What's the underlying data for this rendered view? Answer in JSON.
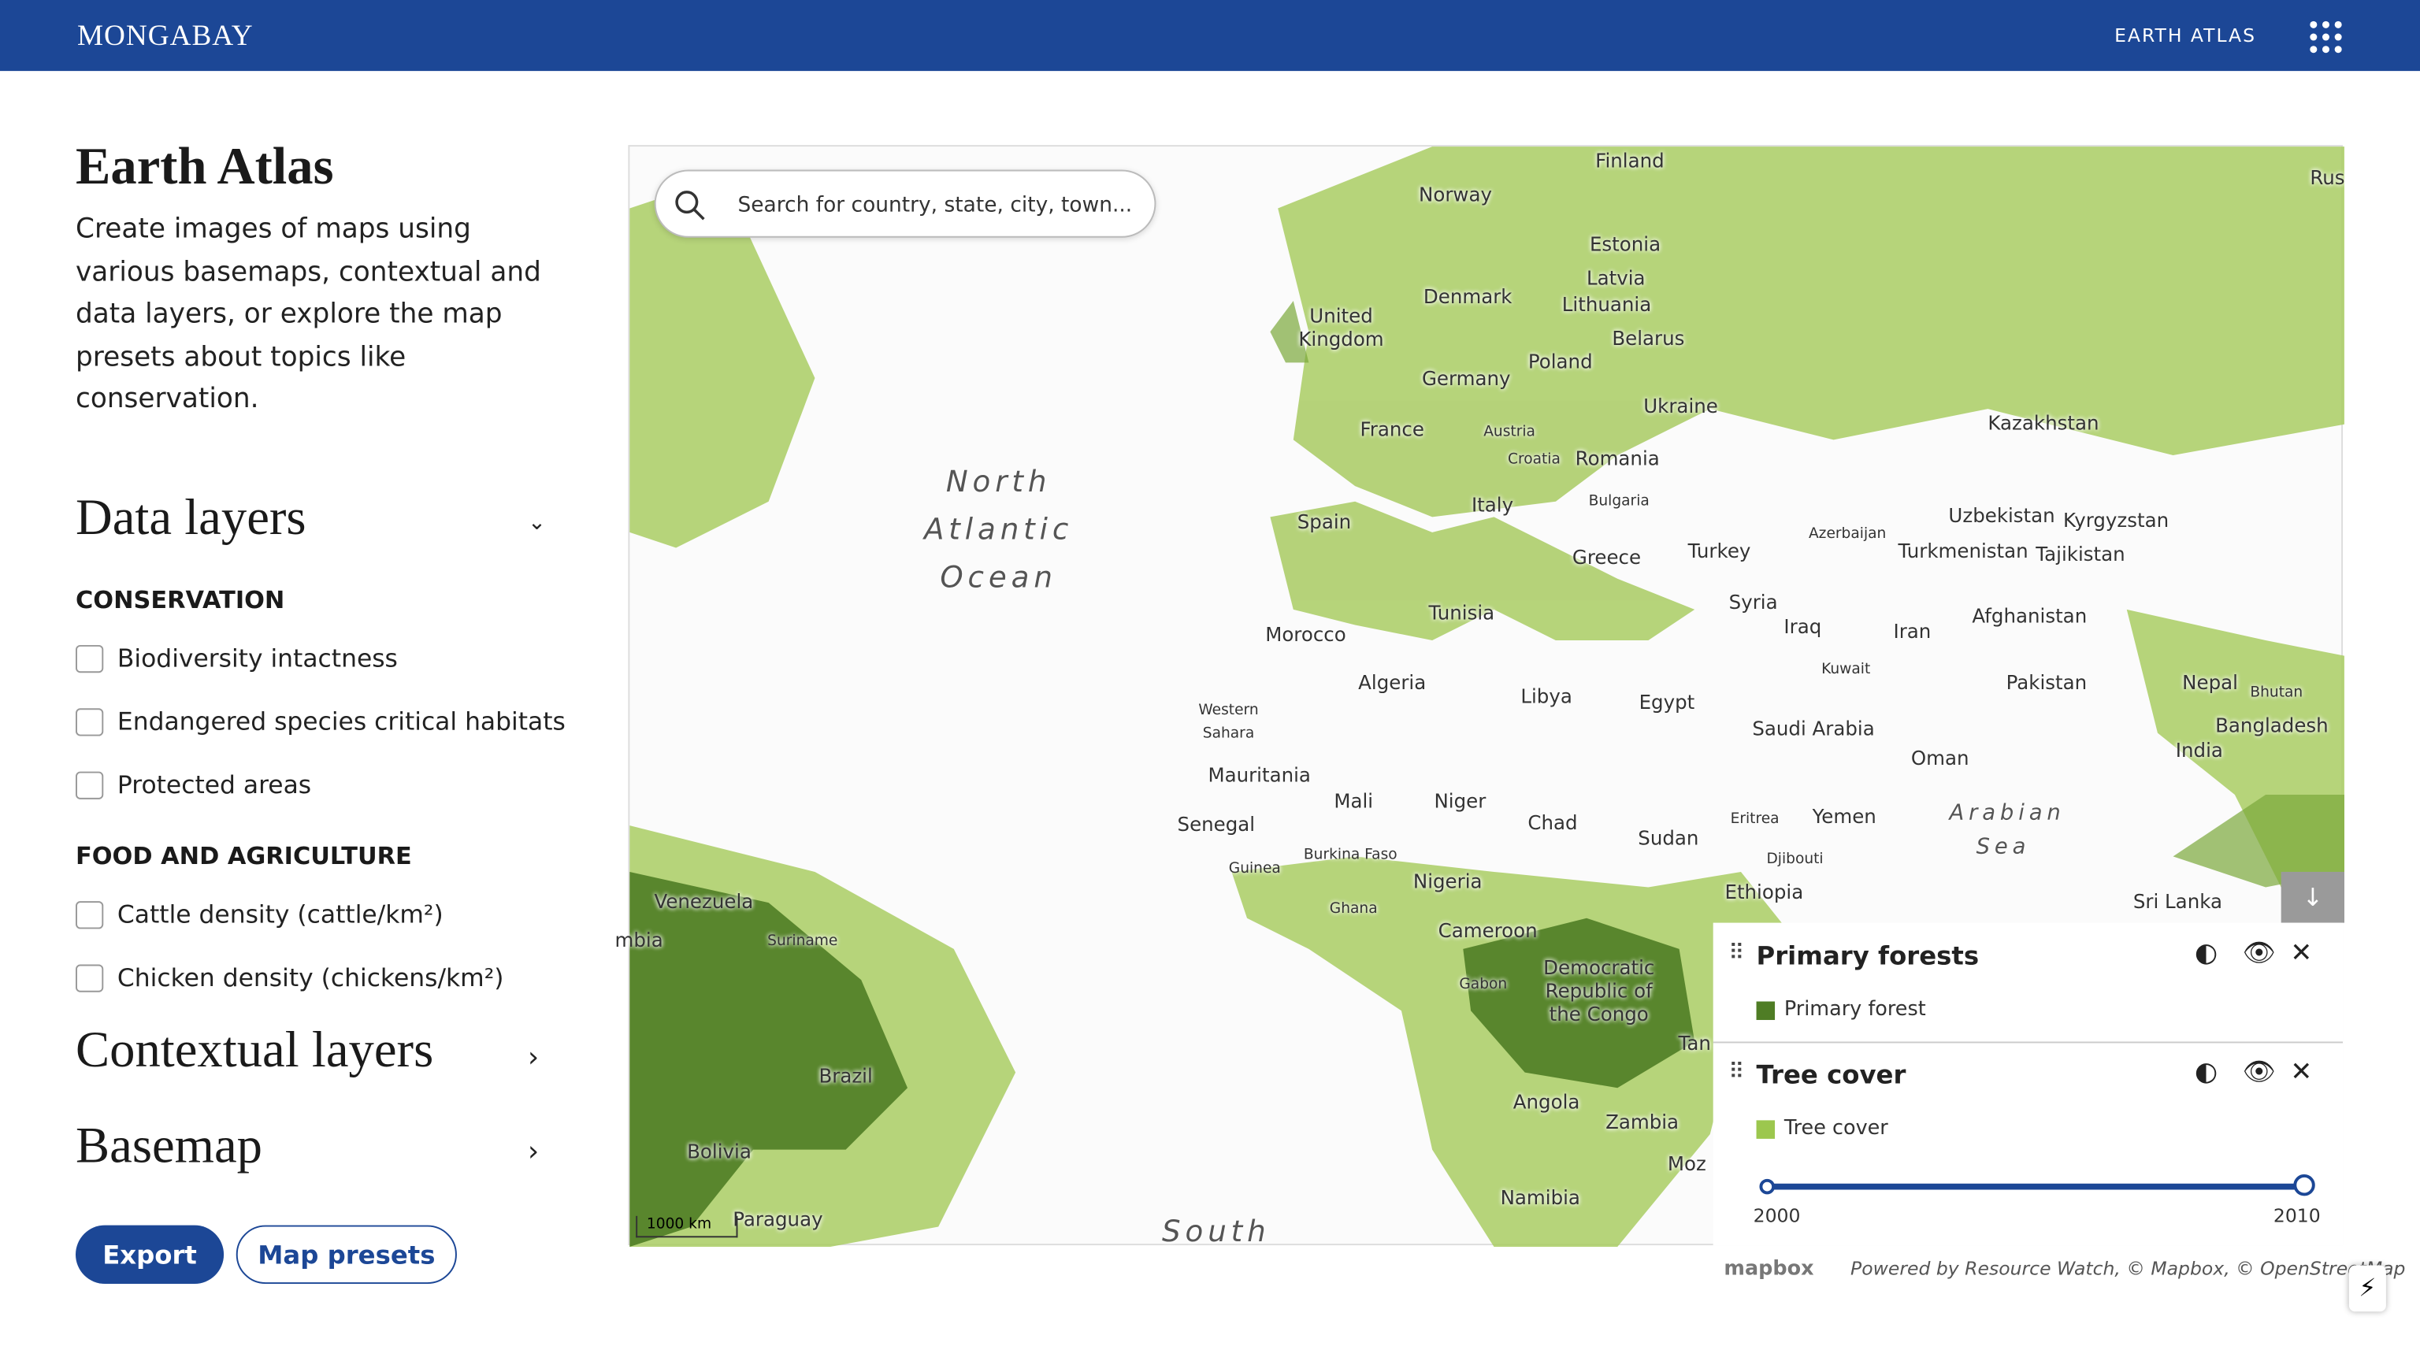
{
  "header": {
    "logo": "MONGABAY",
    "nav": "EARTH ATLAS"
  },
  "sidebar": {
    "title": "Earth Atlas",
    "description": "Create images of maps using various basemaps, contextual and data layers, or explore the map presets about topics like conservation.",
    "data_layers": {
      "title": "Data layers",
      "groups": [
        {
          "title": "CONSERVATION",
          "items": [
            "Biodiversity intactness",
            "Endangered species critical habitats",
            "Protected areas"
          ]
        },
        {
          "title": "FOOD AND AGRICULTURE",
          "items": [
            "Cattle density (cattle/km²)",
            "Chicken density (chickens/km²)"
          ]
        }
      ]
    },
    "contextual_layers": "Contextual layers",
    "basemap": "Basemap",
    "buttons": [
      "Export",
      "Map presets"
    ]
  },
  "map": {
    "search_placeholder": "Search for country, state, city, town...",
    "labels": [
      "Finland",
      "Norway",
      "Estonia",
      "Latvia",
      "Lithuania",
      "Denmark",
      "United Kingdom",
      "Belarus",
      "Poland",
      "Germany",
      "Ukraine",
      "France",
      "Austria",
      "Croatia",
      "Romania",
      "Bulgaria",
      "Kazakhstan",
      "Spain",
      "Italy",
      "Greece",
      "Turkey",
      "Azerbaijan",
      "Uzbekistan",
      "Kyrgyzstan",
      "Turkmenistan",
      "Tajikistan",
      "Syria",
      "Iraq",
      "Iran",
      "Afghanistan",
      "Tunisia",
      "Morocco",
      "Kuwait",
      "Pakistan",
      "Nepal",
      "Bhutan",
      "Bangladesh",
      "Algeria",
      "Libya",
      "Egypt",
      "Western Sahara",
      "Saudi Arabia",
      "India",
      "Oman",
      "Mauritania",
      "Mali",
      "Niger",
      "Chad",
      "Sudan",
      "Eritrea",
      "Yemen",
      "Senegal",
      "Burkina Faso",
      "Djibouti",
      "Guinea",
      "Nigeria",
      "Ethiopia",
      "Sri Lanka",
      "Ghana",
      "Cameroon",
      "Venezuela",
      "Suriname",
      "mbia",
      "Gabon",
      "Democratic Republic of the Congo",
      "Tan",
      "Brazil",
      "Angola",
      "Zambia",
      "Bolivia",
      "Moz",
      "Namibia",
      "Paraguay",
      "Rus"
    ],
    "oceans": [
      "North Atlantic Ocean",
      "Arabian Sea",
      "South"
    ],
    "scale": "1000 km",
    "attribution": {
      "logo": "mapbox",
      "text": "Powered by Resource Watch, © Mapbox, © OpenStreetMap"
    }
  },
  "legend": {
    "layers": [
      {
        "title": "Primary forests",
        "items": [
          {
            "label": "Primary forest",
            "color": "#4f7d25"
          }
        ]
      },
      {
        "title": "Tree cover",
        "items": [
          {
            "label": "Tree cover",
            "color": "#9cc74e"
          }
        ],
        "timeline": {
          "start": 2000,
          "end": 2010
        }
      }
    ]
  }
}
